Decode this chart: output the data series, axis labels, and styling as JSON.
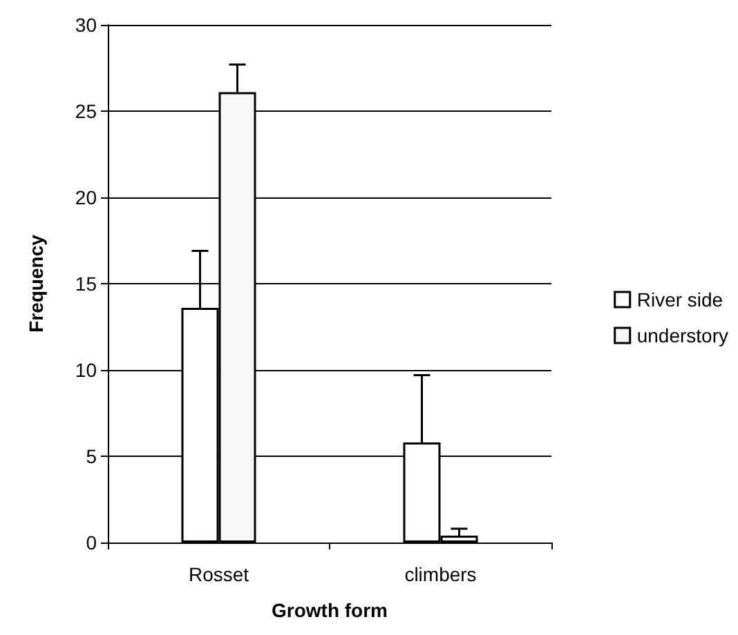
{
  "chart_data": {
    "type": "bar",
    "xlabel": "Growth form",
    "ylabel": "Frequency",
    "categories": [
      "Rosset",
      "climbers"
    ],
    "series": [
      {
        "name": "River side",
        "color": "#ffffff",
        "values": [
          13.6,
          5.8
        ],
        "errors": [
          [
            13.6,
            16.9
          ],
          [
            5.8,
            9.7
          ]
        ]
      },
      {
        "name": "understory",
        "color": "#f8f6f8",
        "values": [
          26.1,
          0.4
        ],
        "errors": [
          [
            26.1,
            27.7
          ],
          [
            0.4,
            0.8
          ]
        ]
      }
    ],
    "ylim": [
      0,
      30
    ],
    "yticks": [
      0,
      5,
      10,
      15,
      20,
      25,
      30
    ],
    "grid": "y",
    "legend": "right"
  }
}
